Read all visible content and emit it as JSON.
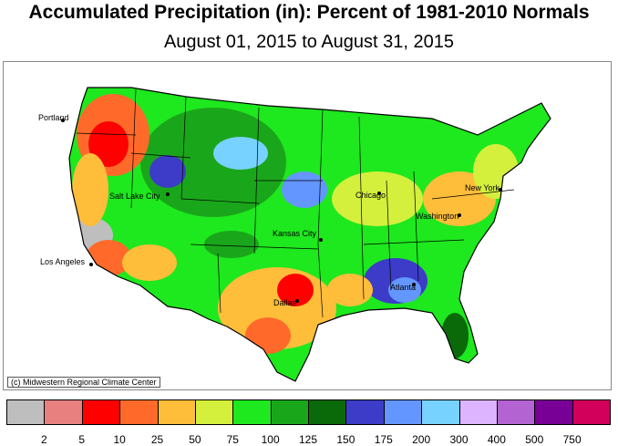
{
  "title": "Accumulated Precipitation (in): Percent of 1981-2010 Normals",
  "subtitle": "August 01, 2015 to August 31, 2015",
  "credit": "(c) Midwestern Regional Climate Center",
  "map": {
    "region": "Contiguous United States",
    "cities": [
      {
        "name": "Portland"
      },
      {
        "name": "Salt Lake City"
      },
      {
        "name": "Los Angeles"
      },
      {
        "name": "Kansas City"
      },
      {
        "name": "Dallas"
      },
      {
        "name": "Chicago"
      },
      {
        "name": "Washington"
      },
      {
        "name": "New York"
      },
      {
        "name": "Atlanta"
      }
    ]
  },
  "legend": {
    "colors": [
      "#bebebe",
      "#e88080",
      "#ff0000",
      "#ff6a2a",
      "#ffbe3a",
      "#d4f03c",
      "#1ee81e",
      "#1aa61a",
      "#0a6a0a",
      "#3c3cc8",
      "#6496ff",
      "#78d2ff",
      "#dcb4ff",
      "#b464d2",
      "#780096",
      "#d2005a"
    ],
    "ticks": [
      "2",
      "5",
      "10",
      "25",
      "50",
      "75",
      "100",
      "125",
      "150",
      "175",
      "200",
      "300",
      "400",
      "500",
      "750"
    ]
  }
}
